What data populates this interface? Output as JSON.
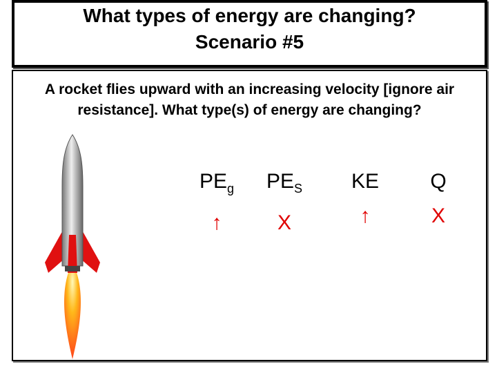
{
  "header": {
    "title": "What types of energy are changing?",
    "subtitle": "Scenario #5"
  },
  "question": "A rocket flies upward with an increasing velocity [ignore air resistance]. What type(s) of energy are changing?",
  "columns": [
    {
      "label": "PE",
      "sub": "g",
      "result": "↑"
    },
    {
      "label": "PE",
      "sub": "S",
      "result": "X"
    },
    {
      "label": "KE",
      "sub": null,
      "result": "↑"
    },
    {
      "label": "Q",
      "sub": null,
      "result": "X"
    }
  ]
}
